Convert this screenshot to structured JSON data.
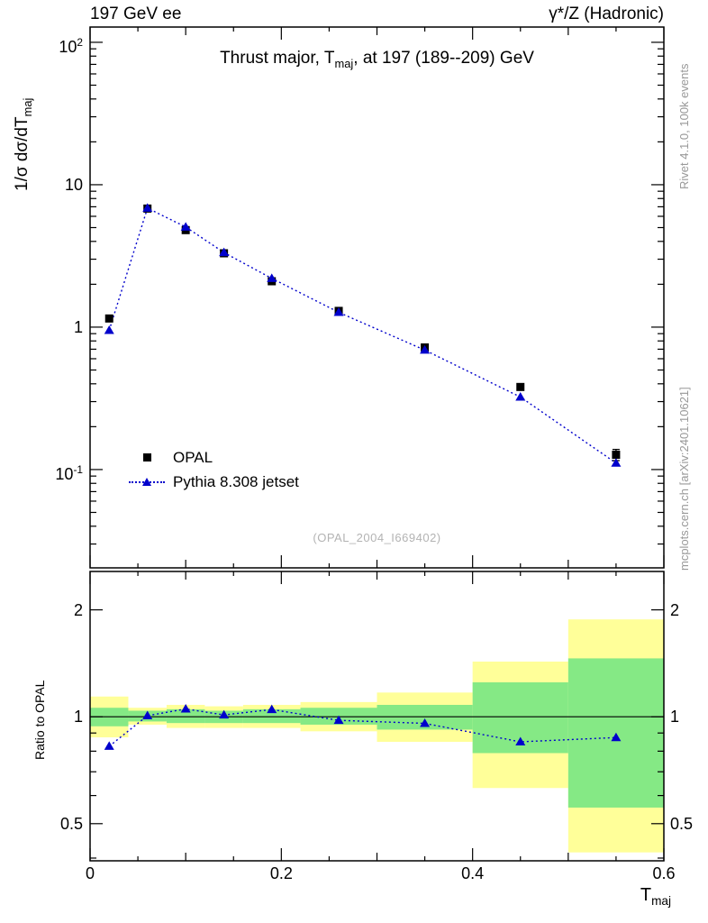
{
  "texts": {
    "header_left": "197 GeV ee",
    "header_right": "γ*/Z (Hadronic)",
    "title_pre": "Thrust major, T",
    "title_sub": "maj",
    "title_post": ", at 197 (189--209) GeV",
    "ylabel_pre": "1/σ  dσ/dT",
    "ylabel_sub": "maj",
    "ratio_ylabel": "Ratio to OPAL",
    "xlabel_pre": "T",
    "xlabel_sub": "maj",
    "watermark": "(OPAL_2004_I669402)",
    "side_top": "Rivet 4.1.0,  100k events",
    "side_bottom": "mcplots.cern.ch [arXiv:2401.10621]"
  },
  "chart_data": {
    "type": "scatter-line with ratio panel",
    "title": "Thrust major, T_maj, at 197 (189--209) GeV",
    "xlabel": "T_maj",
    "ylabel": "1/σ dσ/dT_maj",
    "xlim": [
      0,
      0.6
    ],
    "x_minor_step": 0.05,
    "x_ticks": [
      {
        "v": 0,
        "label": "0"
      },
      {
        "v": 0.2,
        "label": "0.2"
      },
      {
        "v": 0.4,
        "label": "0.4"
      },
      {
        "v": 0.6,
        "label": "0.6"
      }
    ],
    "top_panel": {
      "yscale": "log",
      "ylim": [
        0.0204,
        128
      ],
      "y_ticks": [
        {
          "v": 100,
          "base": "10",
          "exp": "2"
        },
        {
          "v": 10,
          "base": "10",
          "exp": ""
        },
        {
          "v": 1,
          "base": "1",
          "exp": ""
        },
        {
          "v": 0.1,
          "base": "10",
          "exp": "-1"
        }
      ],
      "x": [
        0.02,
        0.06,
        0.1,
        0.14,
        0.19,
        0.26,
        0.35,
        0.45,
        0.55
      ],
      "series": [
        {
          "name": "OPAL",
          "marker": "square",
          "color": "#000000",
          "values": [
            1.15,
            6.8,
            4.8,
            3.3,
            2.1,
            1.3,
            0.72,
            0.38,
            0.127
          ],
          "err_frac": [
            0.05,
            0.03,
            0.03,
            0.02,
            0.02,
            0.02,
            0.03,
            0.05,
            0.09
          ]
        },
        {
          "name": "Pythia 8.308 jetset",
          "marker": "triangle",
          "color": "#0000cc",
          "line": "dotted",
          "values": [
            0.95,
            6.85,
            5.05,
            3.34,
            2.2,
            1.27,
            0.69,
            0.323,
            0.111
          ]
        }
      ]
    },
    "ratio_panel": {
      "yscale": "log",
      "ylabel": "Ratio to OPAL",
      "ylim": [
        0.393,
        2.565
      ],
      "ref_line": 1,
      "y_ticks": [
        {
          "v": 0.5,
          "label": "0.5"
        },
        {
          "v": 1,
          "label": "1"
        },
        {
          "v": 2,
          "label": "2"
        }
      ],
      "y_minor_ticks": [
        0.4,
        0.6,
        0.7,
        0.8,
        0.9
      ],
      "ratio": {
        "x": [
          0.02,
          0.06,
          0.1,
          0.14,
          0.19,
          0.26,
          0.35,
          0.45,
          0.55
        ],
        "values": [
          0.826,
          1.007,
          1.052,
          1.012,
          1.048,
          0.977,
          0.958,
          0.85,
          0.874
        ]
      },
      "bands": [
        {
          "x0": 0.0,
          "x1": 0.04,
          "yellow": [
            0.875,
            1.14
          ],
          "green": [
            0.94,
            1.06
          ]
        },
        {
          "x0": 0.04,
          "x1": 0.08,
          "yellow": [
            0.95,
            1.06
          ],
          "green": [
            0.97,
            1.04
          ]
        },
        {
          "x0": 0.08,
          "x1": 0.12,
          "yellow": [
            0.93,
            1.08
          ],
          "green": [
            0.96,
            1.05
          ]
        },
        {
          "x0": 0.12,
          "x1": 0.16,
          "yellow": [
            0.93,
            1.07
          ],
          "green": [
            0.96,
            1.04
          ]
        },
        {
          "x0": 0.16,
          "x1": 0.22,
          "yellow": [
            0.93,
            1.08
          ],
          "green": [
            0.96,
            1.05
          ]
        },
        {
          "x0": 0.22,
          "x1": 0.3,
          "yellow": [
            0.91,
            1.1
          ],
          "green": [
            0.95,
            1.06
          ]
        },
        {
          "x0": 0.3,
          "x1": 0.4,
          "yellow": [
            0.85,
            1.17
          ],
          "green": [
            0.92,
            1.08
          ]
        },
        {
          "x0": 0.4,
          "x1": 0.5,
          "yellow": [
            0.63,
            1.43
          ],
          "green": [
            0.79,
            1.25
          ]
        },
        {
          "x0": 0.5,
          "x1": 0.6,
          "yellow": [
            0.415,
            1.88
          ],
          "green": [
            0.555,
            1.46
          ]
        }
      ]
    },
    "colors": {
      "yellow_band": "#ffff99",
      "green_band": "#85e985",
      "mc_line": "#0000cc",
      "data_marker": "#000000"
    },
    "legend_position": "left-middle"
  }
}
